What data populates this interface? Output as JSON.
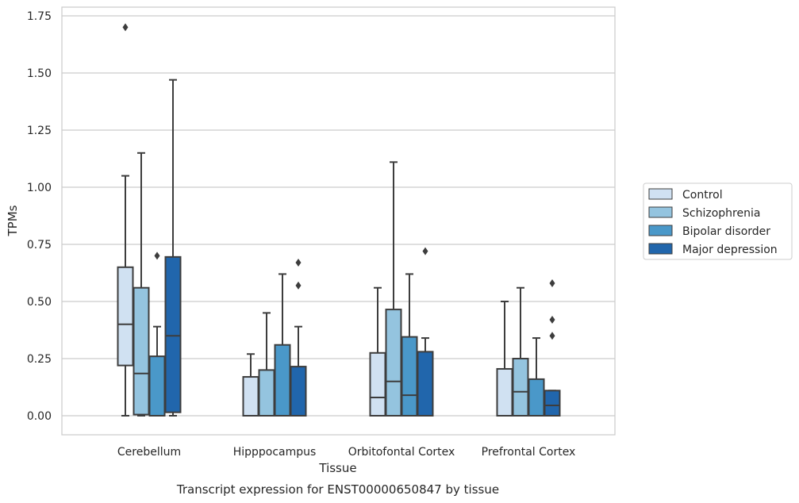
{
  "caption": "Transcript expression for ENST00000650847 by tissue",
  "chart_data": {
    "type": "box",
    "xlabel": "Tissue",
    "ylabel": "TPMs",
    "ylim": [
      -0.08,
      1.78
    ],
    "yticks": [
      0.0,
      0.25,
      0.5,
      0.75,
      1.0,
      1.25,
      1.5,
      1.75
    ],
    "ytick_labels": [
      "0.00",
      "0.25",
      "0.50",
      "0.75",
      "1.00",
      "1.25",
      "1.50",
      "1.75"
    ],
    "grid": "horizontal",
    "legend_position": "right",
    "categories": [
      "Cerebellum",
      "Hipppocampus",
      "Orbitofontal Cortex",
      "Prefrontal Cortex"
    ],
    "series": [
      {
        "name": "Control",
        "color": "#d0e1f2",
        "boxes": [
          {
            "min": 0.0,
            "q1": 0.22,
            "median": 0.4,
            "q3": 0.65,
            "max": 1.05,
            "outliers": [
              1.7
            ]
          },
          {
            "min": 0.0,
            "q1": 0.0,
            "median": 0.0,
            "q3": 0.17,
            "max": 0.27,
            "outliers": []
          },
          {
            "min": 0.0,
            "q1": 0.0,
            "median": 0.08,
            "q3": 0.275,
            "max": 0.56,
            "outliers": []
          },
          {
            "min": 0.0,
            "q1": 0.0,
            "median": 0.0,
            "q3": 0.205,
            "max": 0.5,
            "outliers": []
          }
        ]
      },
      {
        "name": "Schizophrenia",
        "color": "#94c4df",
        "boxes": [
          {
            "min": 0.0,
            "q1": 0.005,
            "median": 0.185,
            "q3": 0.56,
            "max": 1.15,
            "outliers": []
          },
          {
            "min": 0.0,
            "q1": 0.0,
            "median": 0.0,
            "q3": 0.2,
            "max": 0.45,
            "outliers": []
          },
          {
            "min": 0.0,
            "q1": 0.0,
            "median": 0.15,
            "q3": 0.465,
            "max": 1.11,
            "outliers": []
          },
          {
            "min": 0.0,
            "q1": 0.0,
            "median": 0.105,
            "q3": 0.25,
            "max": 0.56,
            "outliers": []
          }
        ]
      },
      {
        "name": "Bipolar disorder",
        "color": "#4a98c9",
        "boxes": [
          {
            "min": 0.0,
            "q1": 0.0,
            "median": 0.0,
            "q3": 0.26,
            "max": 0.39,
            "outliers": [
              0.7
            ]
          },
          {
            "min": 0.0,
            "q1": 0.0,
            "median": 0.0,
            "q3": 0.31,
            "max": 0.62,
            "outliers": []
          },
          {
            "min": 0.0,
            "q1": 0.0,
            "median": 0.09,
            "q3": 0.345,
            "max": 0.62,
            "outliers": []
          },
          {
            "min": 0.0,
            "q1": 0.0,
            "median": 0.0,
            "q3": 0.16,
            "max": 0.34,
            "outliers": []
          }
        ]
      },
      {
        "name": "Major depression",
        "color": "#2166ac",
        "boxes": [
          {
            "min": 0.0,
            "q1": 0.015,
            "median": 0.35,
            "q3": 0.695,
            "max": 1.47,
            "outliers": []
          },
          {
            "min": 0.0,
            "q1": 0.0,
            "median": 0.0,
            "q3": 0.215,
            "max": 0.39,
            "outliers": [
              0.57,
              0.67
            ]
          },
          {
            "min": 0.0,
            "q1": 0.0,
            "median": 0.0,
            "q3": 0.28,
            "max": 0.34,
            "outliers": [
              0.72
            ]
          },
          {
            "min": 0.0,
            "q1": 0.0,
            "median": 0.045,
            "q3": 0.11,
            "max": 0.11,
            "outliers": [
              0.35,
              0.42,
              0.58
            ]
          }
        ]
      }
    ]
  }
}
